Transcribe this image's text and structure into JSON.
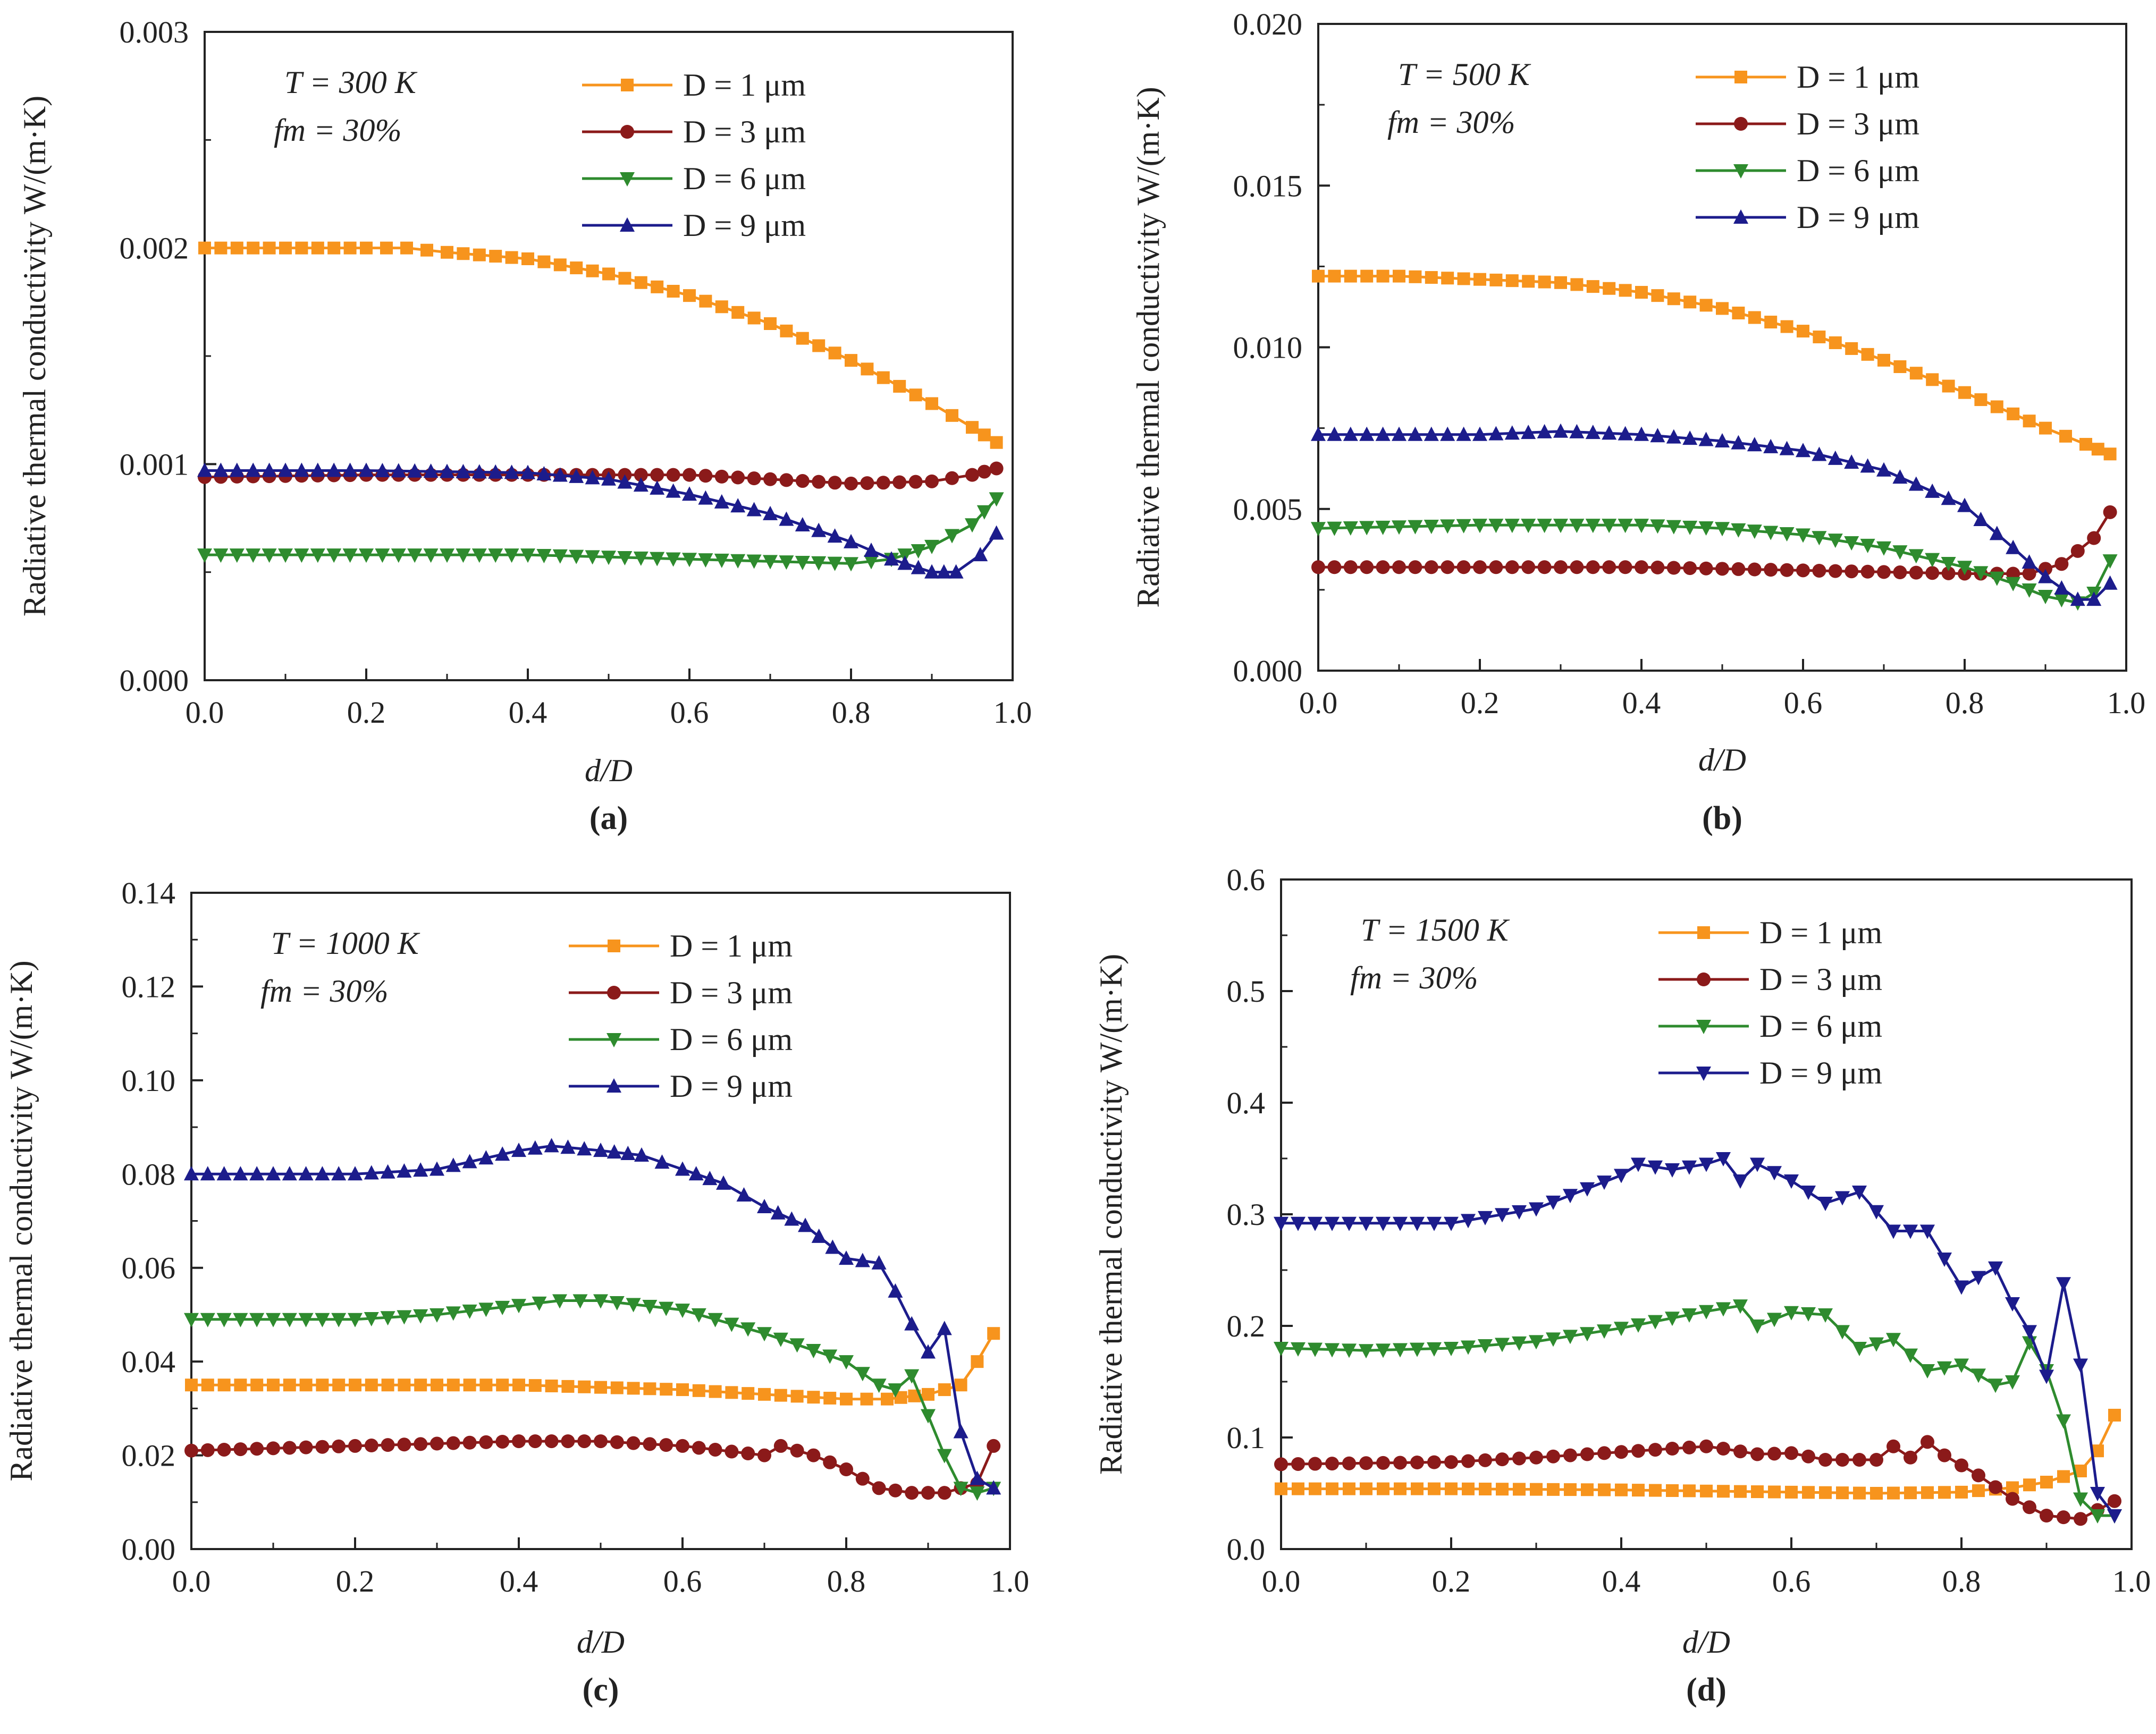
{
  "figure": {
    "x_axis_title": "d/D",
    "y_axis_title": "Radiative thermal conductivity W/(m·K)"
  },
  "chart_data": [
    {
      "type": "line",
      "panel_label": "(a)",
      "conditions": {
        "T": "T = 300 K",
        "f": "fm = 30%"
      },
      "xlim": [
        0.0,
        1.0
      ],
      "ylim": [
        0.0,
        0.003
      ],
      "x_ticks": [
        0.0,
        0.2,
        0.4,
        0.6,
        0.8,
        1.0
      ],
      "x_tick_labels": [
        "0.0",
        "0.2",
        "0.4",
        "0.6",
        "0.8",
        "1.0"
      ],
      "y_ticks": [
        0.0,
        0.001,
        0.002,
        0.003
      ],
      "y_tick_labels": [
        "0.000",
        "0.001",
        "0.002",
        "0.003"
      ],
      "legend_position": "top-right",
      "series": [
        {
          "name": "D = 1 μm",
          "color": "#f7941d",
          "marker": "square",
          "x": [
            0.0,
            0.1,
            0.2,
            0.25,
            0.3,
            0.4,
            0.5,
            0.6,
            0.7,
            0.8,
            0.9,
            0.95,
            0.98
          ],
          "y": [
            0.002,
            0.002,
            0.002,
            0.002,
            0.00198,
            0.00195,
            0.00188,
            0.00178,
            0.00165,
            0.00148,
            0.00128,
            0.00117,
            0.0011
          ]
        },
        {
          "name": "D = 3 μm",
          "color": "#8b1a1a",
          "marker": "circle",
          "x": [
            0.0,
            0.2,
            0.4,
            0.6,
            0.8,
            0.9,
            0.95,
            0.98
          ],
          "y": [
            0.00094,
            0.00095,
            0.00095,
            0.00095,
            0.00091,
            0.00092,
            0.00095,
            0.00098
          ]
        },
        {
          "name": "D = 6 μm",
          "color": "#2e8b2e",
          "marker": "triangle-down",
          "x": [
            0.0,
            0.2,
            0.4,
            0.6,
            0.8,
            0.85,
            0.9,
            0.95,
            0.98
          ],
          "y": [
            0.00058,
            0.00058,
            0.00058,
            0.00056,
            0.00054,
            0.00056,
            0.00062,
            0.00072,
            0.00084
          ]
        },
        {
          "name": "D = 9 μm",
          "color": "#1c1c8c",
          "marker": "triangle-up",
          "x": [
            0.0,
            0.2,
            0.4,
            0.5,
            0.6,
            0.7,
            0.8,
            0.85,
            0.9,
            0.93,
            0.96,
            0.98
          ],
          "y": [
            0.00097,
            0.00097,
            0.00096,
            0.00093,
            0.00086,
            0.00077,
            0.00064,
            0.00056,
            0.0005,
            0.0005,
            0.00058,
            0.00068
          ]
        }
      ]
    },
    {
      "type": "line",
      "panel_label": "(b)",
      "conditions": {
        "T": "T = 500 K",
        "f": "fm = 30%"
      },
      "xlim": [
        0.0,
        1.0
      ],
      "ylim": [
        0.0,
        0.02
      ],
      "x_ticks": [
        0.0,
        0.2,
        0.4,
        0.6,
        0.8,
        1.0
      ],
      "x_tick_labels": [
        "0.0",
        "0.2",
        "0.4",
        "0.6",
        "0.8",
        "1.0"
      ],
      "y_ticks": [
        0.0,
        0.005,
        0.01,
        0.015,
        0.02
      ],
      "y_tick_labels": [
        "0.000",
        "0.005",
        "0.010",
        "0.015",
        "0.020"
      ],
      "legend_position": "top-right",
      "series": [
        {
          "name": "D = 1 μm",
          "color": "#f7941d",
          "marker": "square",
          "x": [
            0.0,
            0.1,
            0.2,
            0.3,
            0.4,
            0.5,
            0.6,
            0.7,
            0.8,
            0.9,
            0.95,
            0.98
          ],
          "y": [
            0.0122,
            0.0122,
            0.0121,
            0.012,
            0.0117,
            0.0112,
            0.0105,
            0.0096,
            0.0086,
            0.0075,
            0.007,
            0.0067
          ]
        },
        {
          "name": "D = 3 μm",
          "color": "#8b1a1a",
          "marker": "circle",
          "x": [
            0.0,
            0.2,
            0.4,
            0.6,
            0.8,
            0.88,
            0.92,
            0.96,
            0.98
          ],
          "y": [
            0.0032,
            0.0032,
            0.0032,
            0.0031,
            0.003,
            0.003,
            0.0033,
            0.0041,
            0.0049
          ]
        },
        {
          "name": "D = 6 μm",
          "color": "#2e8b2e",
          "marker": "triangle-down",
          "x": [
            0.0,
            0.2,
            0.4,
            0.5,
            0.6,
            0.7,
            0.8,
            0.86,
            0.9,
            0.94,
            0.96,
            0.98
          ],
          "y": [
            0.0044,
            0.0045,
            0.0045,
            0.0044,
            0.0042,
            0.0038,
            0.0032,
            0.0027,
            0.0023,
            0.0021,
            0.0024,
            0.0034
          ]
        },
        {
          "name": "D = 9 μm",
          "color": "#1c1c8c",
          "marker": "triangle-up",
          "x": [
            0.0,
            0.2,
            0.3,
            0.4,
            0.5,
            0.6,
            0.7,
            0.8,
            0.86,
            0.9,
            0.94,
            0.96,
            0.98
          ],
          "y": [
            0.0073,
            0.0073,
            0.0074,
            0.0073,
            0.0071,
            0.0068,
            0.0062,
            0.0051,
            0.0038,
            0.0029,
            0.0022,
            0.0022,
            0.0027
          ]
        }
      ]
    },
    {
      "type": "line",
      "panel_label": "(c)",
      "conditions": {
        "T": "T = 1000 K",
        "f": "fm = 30%"
      },
      "xlim": [
        0.0,
        1.0
      ],
      "ylim": [
        0.0,
        0.14
      ],
      "x_ticks": [
        0.0,
        0.2,
        0.4,
        0.6,
        0.8,
        1.0
      ],
      "x_tick_labels": [
        "0.0",
        "0.2",
        "0.4",
        "0.6",
        "0.8",
        "1.0"
      ],
      "y_ticks": [
        0.0,
        0.02,
        0.04,
        0.06,
        0.08,
        0.1,
        0.12,
        0.14
      ],
      "y_tick_labels": [
        "0.00",
        "0.02",
        "0.04",
        "0.06",
        "0.08",
        "0.10",
        "0.12",
        "0.14"
      ],
      "legend_position": "top-right",
      "series": [
        {
          "name": "D = 1 μm",
          "color": "#f7941d",
          "marker": "square",
          "x": [
            0.0,
            0.2,
            0.4,
            0.6,
            0.7,
            0.8,
            0.85,
            0.9,
            0.94,
            0.96,
            0.98
          ],
          "y": [
            0.035,
            0.035,
            0.035,
            0.034,
            0.033,
            0.032,
            0.032,
            0.033,
            0.035,
            0.04,
            0.046
          ]
        },
        {
          "name": "D = 3 μm",
          "color": "#8b1a1a",
          "marker": "circle",
          "x": [
            0.0,
            0.2,
            0.4,
            0.5,
            0.6,
            0.7,
            0.72,
            0.76,
            0.8,
            0.84,
            0.88,
            0.92,
            0.96,
            0.98
          ],
          "y": [
            0.021,
            0.022,
            0.023,
            0.023,
            0.022,
            0.02,
            0.022,
            0.02,
            0.017,
            0.013,
            0.012,
            0.012,
            0.014,
            0.022
          ]
        },
        {
          "name": "D = 6 μm",
          "color": "#2e8b2e",
          "marker": "triangle-down",
          "x": [
            0.0,
            0.2,
            0.3,
            0.4,
            0.45,
            0.5,
            0.6,
            0.7,
            0.8,
            0.84,
            0.86,
            0.88,
            0.92,
            0.94,
            0.96,
            0.98
          ],
          "y": [
            0.049,
            0.049,
            0.05,
            0.052,
            0.053,
            0.053,
            0.051,
            0.046,
            0.04,
            0.035,
            0.034,
            0.037,
            0.02,
            0.013,
            0.012,
            0.013
          ]
        },
        {
          "name": "D = 9 μm",
          "color": "#1c1c8c",
          "marker": "triangle-up",
          "x": [
            0.0,
            0.1,
            0.2,
            0.3,
            0.4,
            0.44,
            0.5,
            0.55,
            0.6,
            0.65,
            0.7,
            0.75,
            0.8,
            0.84,
            0.86,
            0.88,
            0.9,
            0.92,
            0.94,
            0.96,
            0.98
          ],
          "y": [
            0.08,
            0.08,
            0.08,
            0.081,
            0.085,
            0.086,
            0.085,
            0.084,
            0.081,
            0.078,
            0.073,
            0.069,
            0.062,
            0.061,
            0.055,
            0.048,
            0.042,
            0.047,
            0.025,
            0.015,
            0.013
          ]
        }
      ]
    },
    {
      "type": "line",
      "panel_label": "(d)",
      "conditions": {
        "T": "T = 1500 K",
        "f": "fm = 30%"
      },
      "xlim": [
        0.0,
        1.0
      ],
      "ylim": [
        0.0,
        0.6
      ],
      "x_ticks": [
        0.0,
        0.2,
        0.4,
        0.6,
        0.8,
        1.0
      ],
      "x_tick_labels": [
        "0.0",
        "0.2",
        "0.4",
        "0.6",
        "0.8",
        "1.0"
      ],
      "y_ticks": [
        0.0,
        0.1,
        0.2,
        0.3,
        0.4,
        0.5,
        0.6
      ],
      "y_tick_labels": [
        "0.0",
        "0.1",
        "0.2",
        "0.3",
        "0.4",
        "0.5",
        "0.6"
      ],
      "legend_position": "top-right",
      "series": [
        {
          "name": "D = 1 μm",
          "color": "#f7941d",
          "marker": "square",
          "x": [
            0.0,
            0.2,
            0.4,
            0.6,
            0.7,
            0.8,
            0.86,
            0.9,
            0.94,
            0.96,
            0.98
          ],
          "y": [
            0.054,
            0.054,
            0.053,
            0.051,
            0.05,
            0.051,
            0.055,
            0.06,
            0.07,
            0.088,
            0.12
          ]
        },
        {
          "name": "D = 3 μm",
          "color": "#8b1a1a",
          "marker": "circle",
          "x": [
            0.0,
            0.2,
            0.3,
            0.4,
            0.5,
            0.52,
            0.56,
            0.6,
            0.64,
            0.7,
            0.72,
            0.74,
            0.76,
            0.78,
            0.82,
            0.86,
            0.9,
            0.94,
            0.98
          ],
          "y": [
            0.076,
            0.078,
            0.082,
            0.087,
            0.092,
            0.09,
            0.085,
            0.086,
            0.08,
            0.08,
            0.092,
            0.082,
            0.096,
            0.084,
            0.066,
            0.045,
            0.03,
            0.027,
            0.043
          ]
        },
        {
          "name": "D = 6 μm",
          "color": "#2e8b2e",
          "marker": "triangle-down",
          "x": [
            0.0,
            0.1,
            0.2,
            0.3,
            0.4,
            0.5,
            0.54,
            0.56,
            0.6,
            0.64,
            0.68,
            0.72,
            0.76,
            0.8,
            0.84,
            0.86,
            0.88,
            0.9,
            0.92,
            0.94,
            0.96,
            0.98
          ],
          "y": [
            0.18,
            0.178,
            0.18,
            0.186,
            0.198,
            0.213,
            0.218,
            0.2,
            0.212,
            0.21,
            0.18,
            0.188,
            0.16,
            0.165,
            0.147,
            0.15,
            0.185,
            0.16,
            0.115,
            0.045,
            0.03,
            0.03
          ]
        },
        {
          "name": "D = 9 μm",
          "color": "#1c1c8c",
          "marker": "triangle-down",
          "x": [
            0.0,
            0.1,
            0.2,
            0.3,
            0.4,
            0.42,
            0.46,
            0.5,
            0.52,
            0.54,
            0.56,
            0.6,
            0.64,
            0.68,
            0.72,
            0.76,
            0.8,
            0.84,
            0.86,
            0.88,
            0.9,
            0.92,
            0.94,
            0.96,
            0.98
          ],
          "y": [
            0.292,
            0.292,
            0.292,
            0.305,
            0.335,
            0.345,
            0.34,
            0.345,
            0.35,
            0.33,
            0.345,
            0.33,
            0.31,
            0.32,
            0.285,
            0.285,
            0.235,
            0.252,
            0.22,
            0.195,
            0.155,
            0.238,
            0.165,
            0.05,
            0.03
          ]
        }
      ]
    }
  ]
}
